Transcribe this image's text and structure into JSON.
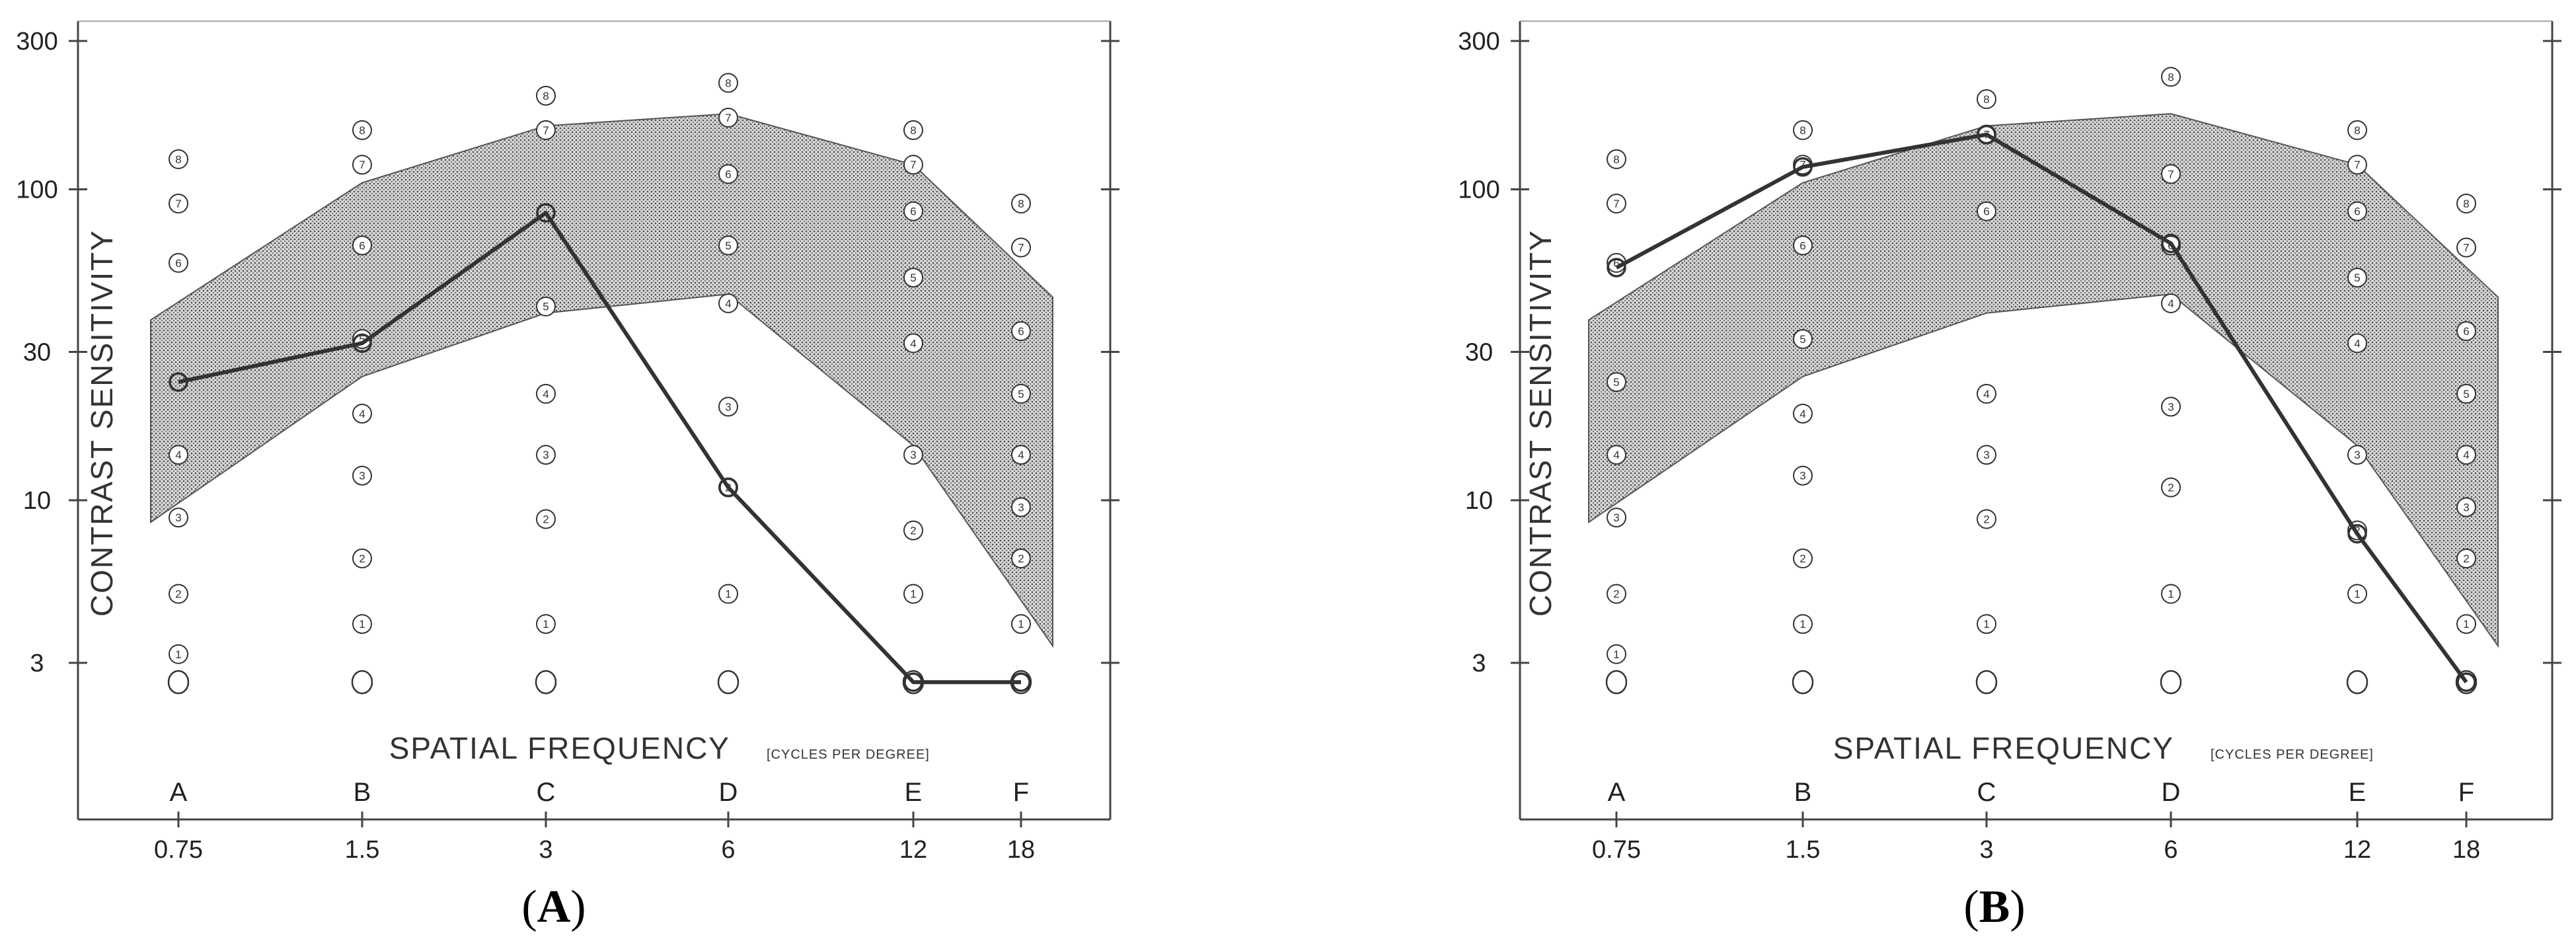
{
  "chart_data": [
    {
      "panel_label": "A",
      "type": "line",
      "ylabel": "CONTRAST SENSITIVITY",
      "xlabel": "SPATIAL FREQUENCY",
      "xlabel_unit": "[CYCLES PER DEGREE]",
      "y_scale": "log",
      "yticks": [
        3,
        10,
        30,
        100,
        300
      ],
      "x": [
        0.75,
        1.5,
        3,
        6,
        12,
        18
      ],
      "x_letters": [
        "A",
        "B",
        "C",
        "D",
        "E",
        "F"
      ],
      "normal_band": {
        "upper": [
          38,
          105,
          160,
          175,
          120,
          45
        ],
        "lower": [
          8.5,
          25,
          40,
          46,
          15,
          3.4
        ]
      },
      "patch_levels": [
        {
          "levels": [
            "0",
            "1",
            "2",
            "3",
            "4",
            "6",
            "7",
            "8"
          ],
          "values": [
            2.6,
            3.2,
            5,
            8.8,
            14,
            58,
            90,
            125
          ]
        },
        {
          "levels": [
            "0",
            "1",
            "2",
            "3",
            "4",
            "5",
            "6",
            "7",
            "8"
          ],
          "values": [
            2.6,
            4,
            6.5,
            12,
            19,
            33,
            66,
            120,
            155
          ]
        },
        {
          "levels": [
            "0",
            "1",
            "2",
            "3",
            "4",
            "5",
            "7",
            "8"
          ],
          "values": [
            2.6,
            4,
            8.7,
            14,
            22,
            42,
            155,
            200
          ]
        },
        {
          "levels": [
            "0",
            "1",
            "2",
            "3",
            "4",
            "5",
            "6",
            "7",
            "8"
          ],
          "values": [
            2.6,
            5,
            11,
            20,
            43,
            66,
            112,
            170,
            220
          ]
        },
        {
          "levels": [
            "0",
            "1",
            "2",
            "3",
            "4",
            "5",
            "6",
            "7",
            "8"
          ],
          "values": [
            2.6,
            5,
            8,
            14,
            32,
            52,
            85,
            120,
            155
          ]
        },
        {
          "levels": [
            "0",
            "1",
            "2",
            "3",
            "4",
            "5",
            "6",
            "7",
            "8"
          ],
          "values": [
            2.6,
            4,
            6.5,
            9.5,
            14,
            22,
            35,
            65,
            90
          ]
        }
      ],
      "series": [
        {
          "values": [
            24,
            32,
            84,
            11,
            2.6,
            2.6
          ]
        }
      ]
    },
    {
      "panel_label": "B",
      "type": "line",
      "ylabel": "CONTRAST SENSITIVITY",
      "xlabel": "SPATIAL FREQUENCY",
      "xlabel_unit": "[CYCLES PER DEGREE]",
      "y_scale": "log",
      "yticks": [
        3,
        10,
        30,
        100,
        300
      ],
      "x": [
        0.75,
        1.5,
        3,
        6,
        12,
        18
      ],
      "x_letters": [
        "A",
        "B",
        "C",
        "D",
        "E",
        "F"
      ],
      "normal_band": {
        "upper": [
          38,
          105,
          160,
          175,
          120,
          45
        ],
        "lower": [
          8.5,
          25,
          40,
          46,
          15,
          3.4
        ]
      },
      "patch_levels": [
        {
          "levels": [
            "0",
            "1",
            "2",
            "3",
            "4",
            "5",
            "6",
            "7",
            "8"
          ],
          "values": [
            2.6,
            3.2,
            5,
            8.8,
            14,
            24,
            58,
            90,
            125
          ]
        },
        {
          "levels": [
            "0",
            "1",
            "2",
            "3",
            "4",
            "5",
            "6",
            "7",
            "8"
          ],
          "values": [
            2.6,
            4,
            6.5,
            12,
            19,
            33,
            66,
            120,
            155
          ]
        },
        {
          "levels": [
            "0",
            "1",
            "2",
            "3",
            "4",
            "6",
            "7",
            "8"
          ],
          "values": [
            2.6,
            4,
            8.7,
            14,
            22,
            85,
            150,
            195
          ]
        },
        {
          "levels": [
            "0",
            "1",
            "2",
            "3",
            "4",
            "6",
            "7",
            "8"
          ],
          "values": [
            2.6,
            5,
            11,
            20,
            43,
            66,
            112,
            230
          ]
        },
        {
          "levels": [
            "0",
            "1",
            "2",
            "3",
            "4",
            "5",
            "6",
            "7",
            "8"
          ],
          "values": [
            2.6,
            5,
            8,
            14,
            32,
            52,
            85,
            120,
            155
          ]
        },
        {
          "levels": [
            "0",
            "1",
            "2",
            "3",
            "4",
            "5",
            "6",
            "7",
            "8"
          ],
          "values": [
            2.6,
            4,
            6.5,
            9.5,
            14,
            22,
            35,
            65,
            90
          ]
        }
      ],
      "series": [
        {
          "values": [
            56,
            118,
            150,
            67,
            7.8,
            2.6
          ]
        }
      ]
    }
  ]
}
